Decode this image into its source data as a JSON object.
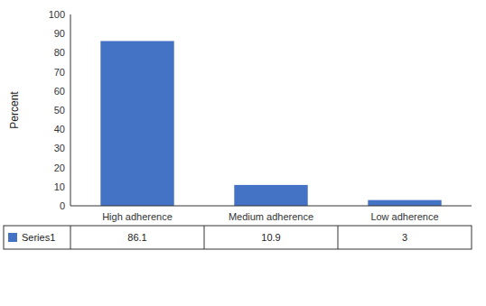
{
  "chart_data": {
    "type": "bar",
    "categories": [
      "High adherence",
      "Medium adherence",
      "Low adherence"
    ],
    "series": [
      {
        "name": "Series1",
        "color": "#4472c4",
        "values": [
          86.1,
          10.9,
          3
        ]
      }
    ],
    "ylabel": "Percent",
    "ylim": [
      0,
      100
    ],
    "yticks": [
      0,
      10,
      20,
      30,
      40,
      50,
      60,
      70,
      80,
      90,
      100
    ],
    "grid": false,
    "data_labels": true
  }
}
